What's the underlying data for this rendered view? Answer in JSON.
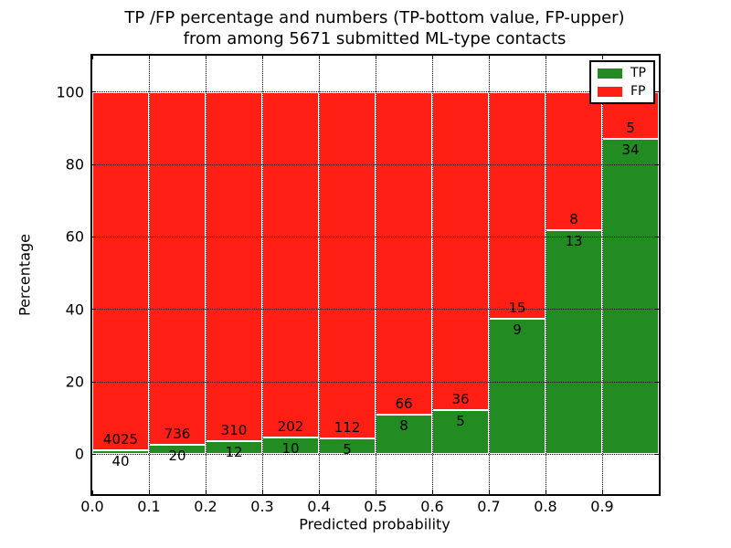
{
  "figure": {
    "title_line1": "TP /FP percentage and numbers (TP-bottom value, FP-upper)",
    "title_line2": "from among 5671 submitted ML-type contacts"
  },
  "axes": {
    "xlabel": "Predicted probability",
    "ylabel": "Percentage",
    "x_tick_labels": [
      "0.0",
      "0.1",
      "0.2",
      "0.3",
      "0.4",
      "0.5",
      "0.6",
      "0.7",
      "0.8",
      "0.9"
    ],
    "x_tick_values": [
      0,
      0.1,
      0.2,
      0.3,
      0.4,
      0.5,
      0.6,
      0.7,
      0.8,
      0.9
    ],
    "y_tick_labels": [
      "0",
      "20",
      "40",
      "60",
      "80",
      "100"
    ],
    "y_tick_values": [
      0,
      20,
      40,
      60,
      80,
      100
    ],
    "xlim": [
      0,
      1
    ],
    "ylim": [
      -11,
      110
    ],
    "grid_style": "dotted"
  },
  "chart_data": {
    "type": "bar",
    "stacked": true,
    "normalized": "each bin stacks to 100 percent",
    "title": "TP /FP percentage and numbers (TP-bottom value, FP-upper) from among 5671 submitted ML-type contacts",
    "xlabel": "Predicted probability",
    "ylabel": "Percentage",
    "total_contacts": 5671,
    "bin_width": 0.1,
    "categories": [
      "0.0-0.1",
      "0.1-0.2",
      "0.2-0.3",
      "0.3-0.4",
      "0.4-0.5",
      "0.5-0.6",
      "0.6-0.7",
      "0.7-0.8",
      "0.8-0.9",
      "0.9-1.0"
    ],
    "series": [
      {
        "name": "TP",
        "color": "#228B22",
        "counts": [
          40,
          20,
          12,
          10,
          5,
          8,
          5,
          9,
          13,
          34
        ]
      },
      {
        "name": "FP",
        "color": "#FF1F14",
        "counts": [
          4025,
          736,
          310,
          202,
          112,
          66,
          36,
          15,
          8,
          5
        ]
      }
    ],
    "tp_percent": [
      1.0,
      2.6,
      3.7,
      4.7,
      4.3,
      10.8,
      12.2,
      37.5,
      61.9,
      87.2
    ],
    "legend": {
      "position": "upper right",
      "entries": [
        {
          "label": "TP"
        },
        {
          "label": "FP"
        }
      ]
    },
    "colors": {
      "tp": "#228B22",
      "fp": "#FF1F14",
      "grid": "#000000"
    },
    "ylim": [
      -11,
      110
    ],
    "grid": true
  }
}
